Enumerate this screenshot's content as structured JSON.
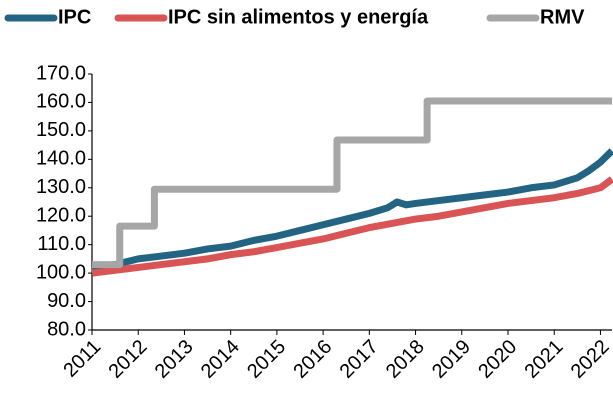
{
  "chart_data": {
    "type": "line",
    "series": [
      {
        "name": "IPC",
        "color": "#236483",
        "x": [
          2011,
          2011.5,
          2012,
          2012.5,
          2013,
          2013.5,
          2014,
          2014.5,
          2015,
          2015.5,
          2016,
          2016.5,
          2017,
          2017.4,
          2017.6,
          2017.8,
          2018,
          2018.5,
          2019,
          2019.5,
          2020,
          2020.5,
          2021,
          2021.5,
          2021.75,
          2022,
          2022.25
        ],
        "values": [
          101,
          103,
          105,
          106,
          107,
          108.5,
          109.5,
          111.5,
          113,
          115,
          117,
          119,
          121,
          123,
          125,
          124,
          124.5,
          125.5,
          126.5,
          127.5,
          128.5,
          130,
          131,
          133.5,
          136,
          139,
          143
        ]
      },
      {
        "name": "IPC sin alimentos y energía",
        "color": "#d95555",
        "x": [
          2011,
          2011.5,
          2012,
          2012.5,
          2013,
          2013.5,
          2014,
          2014.5,
          2015,
          2015.5,
          2016,
          2016.5,
          2017,
          2017.5,
          2018,
          2018.5,
          2019,
          2019.5,
          2020,
          2020.5,
          2021,
          2021.5,
          2022,
          2022.25
        ],
        "values": [
          100,
          101,
          102,
          103,
          104,
          105,
          106.5,
          107.5,
          109,
          110.5,
          112,
          114,
          116,
          117.5,
          119,
          120,
          121.5,
          123,
          124.5,
          125.5,
          126.5,
          128,
          130,
          133
        ]
      },
      {
        "name": "RMV",
        "color": "#a6a6a6",
        "x": [
          2011,
          2011.6,
          2011.6,
          2012.35,
          2012.35,
          2016.3,
          2016.3,
          2018.25,
          2018.25,
          2022.25
        ],
        "values": [
          103,
          103,
          116.5,
          116.5,
          129.5,
          129.5,
          146.8,
          146.8,
          160.5,
          160.5
        ]
      }
    ],
    "xlim": [
      2011,
      2022.25
    ],
    "xticks": [
      2011,
      2012,
      2013,
      2014,
      2015,
      2016,
      2017,
      2018,
      2019,
      2020,
      2021,
      2022
    ],
    "ylim": [
      80,
      170
    ],
    "yticks": [
      {
        "value": 80,
        "label": "80.0"
      },
      {
        "value": 90,
        "label": "90.0"
      },
      {
        "value": 100,
        "label": "100.0"
      },
      {
        "value": 110,
        "label": "110.0"
      },
      {
        "value": 120,
        "label": "120.0"
      },
      {
        "value": 130,
        "label": "130.0"
      },
      {
        "value": 140,
        "label": "140.0"
      },
      {
        "value": 150,
        "label": "150.0"
      },
      {
        "value": 160,
        "label": "160.0"
      },
      {
        "value": 170,
        "label": "170.0"
      }
    ],
    "grid": false
  }
}
